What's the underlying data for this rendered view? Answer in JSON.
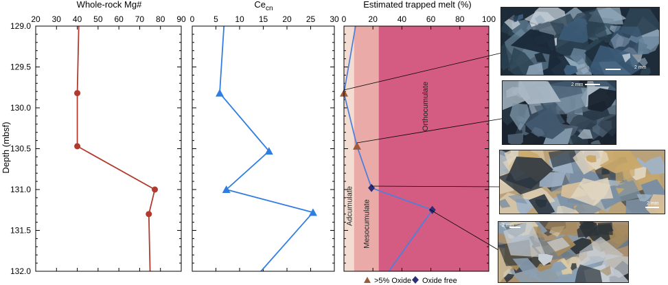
{
  "figure": {
    "depth_label": "Depth (mbsf)",
    "depth_ticks": [
      "129.0",
      "129.5",
      "130.0",
      "130.5",
      "131.0",
      "131.5",
      "132.0"
    ],
    "depth_range": [
      129.0,
      132.0
    ]
  },
  "chart_data": [
    {
      "type": "line",
      "title": "Whole-rock Mg#",
      "xlim": [
        20,
        90
      ],
      "xticks": [
        "20",
        "30",
        "40",
        "50",
        "60",
        "70",
        "80",
        "90"
      ],
      "ylim": [
        129.0,
        132.0
      ],
      "ylabel": "Depth (mbsf)",
      "color": "#b03a2e",
      "marker": "circle",
      "line": [
        {
          "x": 40.7,
          "y": 129.0
        },
        {
          "x": 40.0,
          "y": 129.82
        },
        {
          "x": 40.0,
          "y": 130.47
        },
        {
          "x": 77.3,
          "y": 131.0
        },
        {
          "x": 74.4,
          "y": 131.3
        },
        {
          "x": 75.0,
          "y": 132.0
        }
      ],
      "points": [
        {
          "x": 40.0,
          "y": 129.82
        },
        {
          "x": 40.0,
          "y": 130.47
        },
        {
          "x": 77.3,
          "y": 131.0
        },
        {
          "x": 74.4,
          "y": 131.3
        }
      ]
    },
    {
      "type": "line",
      "title": "Ce",
      "title_subscript": "cn",
      "xlim": [
        0,
        30
      ],
      "xticks": [
        "0",
        "5",
        "10",
        "15",
        "20",
        "25",
        "30"
      ],
      "ylim": [
        129.0,
        132.0
      ],
      "color": "#2f7de1",
      "marker": "triangle",
      "line": [
        {
          "x": 6.7,
          "y": 129.0
        },
        {
          "x": 5.8,
          "y": 129.82
        },
        {
          "x": 16.2,
          "y": 130.53
        },
        {
          "x": 7.2,
          "y": 131.0
        },
        {
          "x": 25.5,
          "y": 131.28
        },
        {
          "x": 14.5,
          "y": 132.0
        }
      ],
      "points": [
        {
          "x": 5.8,
          "y": 129.82
        },
        {
          "x": 16.2,
          "y": 130.53
        },
        {
          "x": 7.2,
          "y": 131.0
        },
        {
          "x": 25.5,
          "y": 131.28
        }
      ]
    },
    {
      "type": "line",
      "title": "Estimated trapped melt (%)",
      "xlim": [
        0,
        100
      ],
      "xticks": [
        "0",
        "20",
        "40",
        "60",
        "80",
        "100"
      ],
      "ylim": [
        129.0,
        132.0
      ],
      "color": "#4f7fd8",
      "zones": [
        {
          "label": "Adcumulate",
          "from": 0,
          "to": 7,
          "color": "#f3ddd2"
        },
        {
          "label": "Mesocumulate",
          "from": 7,
          "to": 24,
          "color": "#e9aaa8"
        },
        {
          "label": "Orthocumulate",
          "from": 24,
          "to": 100,
          "color": "#d45c82"
        }
      ],
      "line": [
        {
          "x": 8,
          "y": 129.0
        },
        {
          "x": 0,
          "y": 129.82
        },
        {
          "x": 9,
          "y": 130.47
        },
        {
          "x": 19,
          "y": 130.98
        },
        {
          "x": 61,
          "y": 131.25
        },
        {
          "x": 31,
          "y": 132.0
        }
      ],
      "points": [
        {
          "x": 0,
          "y": 129.82,
          "type": ">5% Oxide"
        },
        {
          "x": 9,
          "y": 130.47,
          "type": ">5% Oxide"
        },
        {
          "x": 19,
          "y": 130.98,
          "type": "Oxide free"
        },
        {
          "x": 61,
          "y": 131.25,
          "type": "Oxide free"
        }
      ],
      "legend": [
        {
          "label": ">5% Oxide",
          "marker": "triangle",
          "color": "#9a5a3c"
        },
        {
          "label": "Oxide free",
          "marker": "diamond",
          "color": "#2b2f7a"
        }
      ]
    }
  ],
  "photos": [
    {
      "name": "photomicrograph-1",
      "scale": "2 mm",
      "palette": [
        "#1b2a3a",
        "#3f5f7d",
        "#8fa6b9",
        "#c8d3dc",
        "#2d4454",
        "#6d8aa0"
      ]
    },
    {
      "name": "photomicrograph-2",
      "scale": "2 mm",
      "palette": [
        "#1a2330",
        "#41586d",
        "#7d96a8",
        "#a9b8c4",
        "#2a3a48",
        "#5a6f82"
      ]
    },
    {
      "name": "photomicrograph-3",
      "scale": "2 mm",
      "palette": [
        "#c9a86a",
        "#9fb3c7",
        "#2b3540",
        "#d8c09a",
        "#7a8fa3",
        "#e2d6c0"
      ]
    },
    {
      "name": "photomicrograph-4",
      "scale": "2 mm",
      "palette": [
        "#a68a5d",
        "#c8cfd6",
        "#2d3438",
        "#8aa0b5",
        "#6c7a86",
        "#d9c9a5"
      ]
    }
  ]
}
